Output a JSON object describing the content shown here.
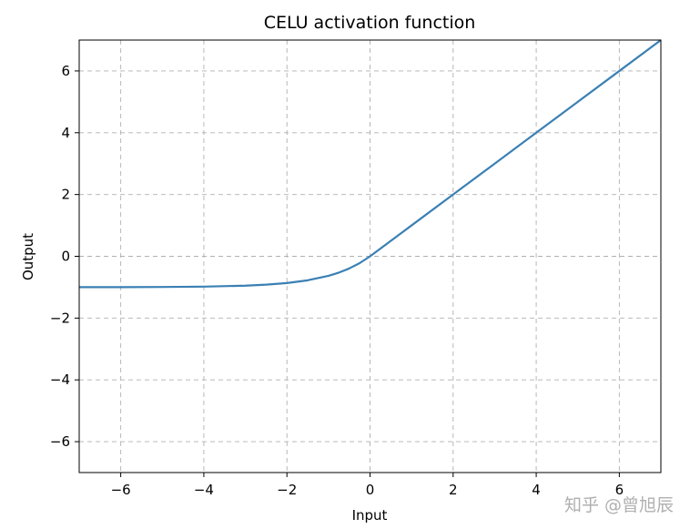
{
  "chart_data": {
    "type": "line",
    "title": "CELU activation function",
    "xlabel": "Input",
    "ylabel": "Output",
    "xlim": [
      -7,
      7
    ],
    "ylim": [
      -7,
      7
    ],
    "xticks": [
      -6,
      -4,
      -2,
      0,
      2,
      4,
      6
    ],
    "yticks": [
      -6,
      -4,
      -2,
      0,
      2,
      4,
      6
    ],
    "xtick_labels": [
      "−6",
      "−4",
      "−2",
      "0",
      "2",
      "4",
      "6"
    ],
    "ytick_labels": [
      "−6",
      "−4",
      "−2",
      "0",
      "2",
      "4",
      "6"
    ],
    "grid": true,
    "series": [
      {
        "color": "#3a80b4",
        "x": [
          -7,
          -6,
          -5,
          -4,
          -3,
          -2.5,
          -2,
          -1.5,
          -1,
          -0.75,
          -0.5,
          -0.25,
          0,
          1,
          2,
          3,
          4,
          5,
          6,
          7
        ],
        "y": [
          -0.999,
          -0.998,
          -0.993,
          -0.982,
          -0.95,
          -0.918,
          -0.865,
          -0.777,
          -0.632,
          -0.528,
          -0.393,
          -0.221,
          0,
          1,
          2,
          3,
          4,
          5,
          6,
          7
        ]
      }
    ]
  },
  "watermark": "知乎 @曾旭辰"
}
